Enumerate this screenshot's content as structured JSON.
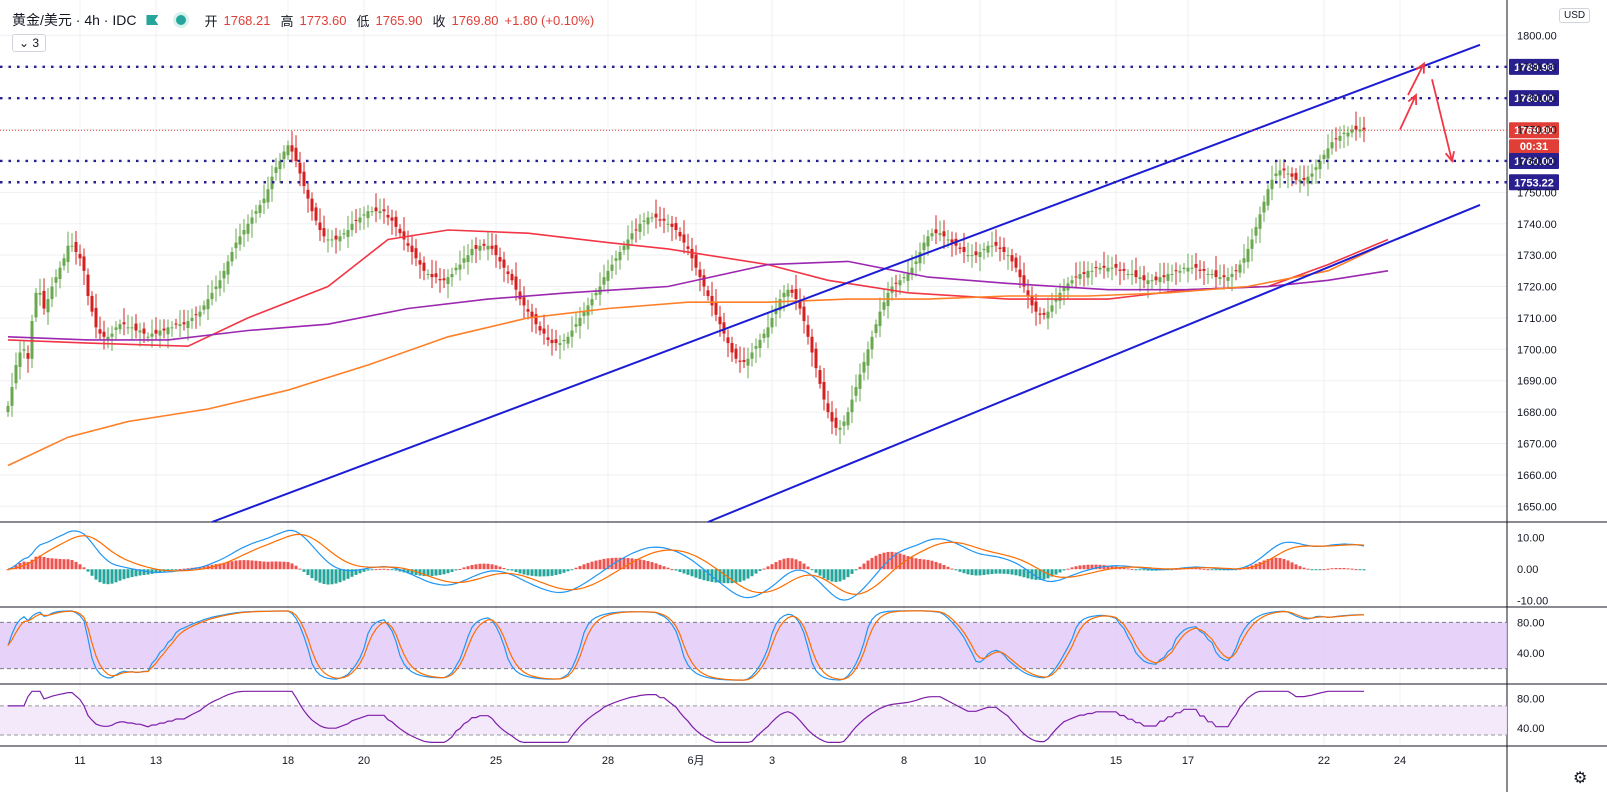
{
  "header": {
    "symbol": "黄金/美元 · 4h · IDC",
    "open_label": "开",
    "open": "1768.21",
    "high_label": "高",
    "high": "1773.60",
    "low_label": "低",
    "low": "1765.90",
    "close_label": "收",
    "close": "1769.80",
    "change": "+1.80 (+0.10%)",
    "collapse_count": "3",
    "currency": "USD"
  },
  "chart_data": {
    "type": "candlestick",
    "price_axis": {
      "ylim": [
        1645,
        1810
      ],
      "ticks": [
        "1800.00",
        "1790.00",
        "1780.00",
        "1770.00",
        "1760.00",
        "1750.00",
        "1740.00",
        "1730.00",
        "1720.00",
        "1710.00",
        "1700.00",
        "1690.00",
        "1680.00",
        "1670.00",
        "1660.00",
        "1650.00"
      ]
    },
    "time_axis": {
      "ticks": [
        {
          "bar": 18,
          "label": "11"
        },
        {
          "bar": 37,
          "label": "13"
        },
        {
          "bar": 70,
          "label": "18"
        },
        {
          "bar": 89,
          "label": "20"
        },
        {
          "bar": 122,
          "label": "25"
        },
        {
          "bar": 150,
          "label": "28"
        },
        {
          "bar": 172,
          "label": "6月"
        },
        {
          "bar": 191,
          "label": "3"
        },
        {
          "bar": 224,
          "label": "8"
        },
        {
          "bar": 243,
          "label": "10"
        },
        {
          "bar": 277,
          "label": "15"
        },
        {
          "bar": 295,
          "label": "17"
        },
        {
          "bar": 329,
          "label": "22"
        },
        {
          "bar": 348,
          "label": "24"
        }
      ]
    },
    "closes": [
      1682,
      1688,
      1695,
      1699,
      1700,
      1697,
      1709,
      1718,
      1718,
      1713,
      1716,
      1720,
      1723,
      1726,
      1729,
      1733,
      1733,
      1731,
      1729,
      1725,
      1717,
      1712,
      1707,
      1705,
      1704,
      1704,
      1705,
      1707,
      1708,
      1708,
      1707,
      1707,
      1706,
      1706,
      1705,
      1704,
      1705,
      1705,
      1706,
      1706,
      1707,
      1707,
      1708,
      1708,
      1708,
      1709,
      1710,
      1711,
      1712,
      1714,
      1716,
      1718,
      1720,
      1722,
      1725,
      1728,
      1731,
      1734,
      1736,
      1738,
      1740,
      1742,
      1744,
      1746,
      1748,
      1751,
      1755,
      1758,
      1760,
      1763,
      1765,
      1763,
      1760,
      1756,
      1752,
      1748,
      1744,
      1741,
      1738,
      1736,
      1735,
      1735,
      1735,
      1736,
      1737,
      1738,
      1740,
      1741,
      1742,
      1743,
      1744,
      1744,
      1744,
      1744,
      1744,
      1742,
      1741,
      1739,
      1737,
      1735,
      1733,
      1731,
      1729,
      1727,
      1725,
      1724,
      1723,
      1723,
      1722,
      1722,
      1723,
      1724,
      1726,
      1727,
      1729,
      1730,
      1732,
      1732,
      1733,
      1733,
      1733,
      1732,
      1730,
      1728,
      1726,
      1724,
      1722,
      1719,
      1716,
      1714,
      1712,
      1710,
      1708,
      1706,
      1705,
      1703,
      1702,
      1702,
      1702,
      1703,
      1704,
      1706,
      1708,
      1710,
      1712,
      1714,
      1716,
      1718,
      1720,
      1723,
      1725,
      1727,
      1729,
      1731,
      1733,
      1735,
      1737,
      1738,
      1740,
      1741,
      1742,
      1742,
      1742,
      1741,
      1741,
      1740,
      1739,
      1738,
      1736,
      1734,
      1732,
      1729,
      1726,
      1723,
      1720,
      1717,
      1714,
      1711,
      1708,
      1705,
      1702,
      1699,
      1697,
      1696,
      1696,
      1697,
      1699,
      1701,
      1703,
      1705,
      1707,
      1710,
      1713,
      1716,
      1718,
      1719,
      1718,
      1716,
      1713,
      1709,
      1704,
      1699,
      1694,
      1689,
      1684,
      1680,
      1677,
      1675,
      1675,
      1677,
      1680,
      1684,
      1688,
      1692,
      1696,
      1700,
      1704,
      1708,
      1712,
      1715,
      1718,
      1720,
      1721,
      1722,
      1723,
      1724,
      1726,
      1728,
      1731,
      1734,
      1736,
      1737,
      1737,
      1737,
      1736,
      1735,
      1734,
      1733,
      1732,
      1731,
      1730,
      1730,
      1730,
      1731,
      1732,
      1733,
      1733,
      1733,
      1732,
      1731,
      1730,
      1728,
      1726,
      1723,
      1720,
      1717,
      1714,
      1712,
      1711,
      1711,
      1712,
      1714,
      1716,
      1718,
      1720,
      1721,
      1722,
      1723,
      1724,
      1724,
      1725,
      1725,
      1726,
      1726,
      1726,
      1726,
      1726,
      1726,
      1725,
      1725,
      1724,
      1724,
      1723,
      1723,
      1722,
      1722,
      1722,
      1722,
      1723,
      1723,
      1724,
      1724,
      1725,
      1725,
      1726,
      1726,
      1726,
      1726,
      1725,
      1725,
      1724,
      1724,
      1723,
      1723,
      1723,
      1723,
      1724,
      1725,
      1727,
      1729,
      1732,
      1735,
      1739,
      1743,
      1747,
      1751,
      1754,
      1756,
      1757,
      1757,
      1756,
      1755,
      1754,
      1754,
      1754,
      1755,
      1756,
      1758,
      1760,
      1762,
      1764,
      1766,
      1767,
      1768,
      1769,
      1769,
      1770,
      1770,
      1770,
      1770
    ],
    "moving_averages": [
      {
        "color": "#f23645",
        "points": [
          [
            0,
            1703
          ],
          [
            20,
            1702
          ],
          [
            45,
            1701
          ],
          [
            60,
            1710
          ],
          [
            80,
            1720
          ],
          [
            95,
            1735
          ],
          [
            110,
            1738
          ],
          [
            130,
            1737
          ],
          [
            150,
            1734
          ],
          [
            165,
            1732
          ],
          [
            190,
            1727
          ],
          [
            205,
            1722
          ],
          [
            225,
            1718
          ],
          [
            250,
            1716
          ],
          [
            275,
            1716
          ],
          [
            295,
            1719
          ],
          [
            315,
            1720
          ],
          [
            330,
            1727
          ],
          [
            345,
            1735
          ]
        ]
      },
      {
        "color": "#9c27b0",
        "points": [
          [
            0,
            1704
          ],
          [
            20,
            1703
          ],
          [
            40,
            1703
          ],
          [
            60,
            1706
          ],
          [
            80,
            1708
          ],
          [
            100,
            1713
          ],
          [
            120,
            1716
          ],
          [
            140,
            1718
          ],
          [
            165,
            1720
          ],
          [
            190,
            1727
          ],
          [
            210,
            1728
          ],
          [
            230,
            1723
          ],
          [
            250,
            1721
          ],
          [
            275,
            1719
          ],
          [
            295,
            1719
          ],
          [
            315,
            1720
          ],
          [
            330,
            1722
          ],
          [
            345,
            1725
          ]
        ]
      },
      {
        "color": "#ff7f27",
        "points": [
          [
            0,
            1663
          ],
          [
            15,
            1672
          ],
          [
            30,
            1677
          ],
          [
            50,
            1681
          ],
          [
            70,
            1687
          ],
          [
            90,
            1695
          ],
          [
            110,
            1704
          ],
          [
            130,
            1710
          ],
          [
            150,
            1713
          ],
          [
            170,
            1715
          ],
          [
            190,
            1715
          ],
          [
            210,
            1716
          ],
          [
            230,
            1716
          ],
          [
            250,
            1717
          ],
          [
            270,
            1717
          ],
          [
            290,
            1718
          ],
          [
            310,
            1720
          ],
          [
            330,
            1725
          ],
          [
            345,
            1734
          ]
        ]
      }
    ],
    "trend_lines": [
      {
        "color": "#1c1cd6",
        "from": [
          51,
          1645
        ],
        "to": [
          368,
          1797
        ]
      },
      {
        "color": "#1c1cd6",
        "from": [
          175,
          1645
        ],
        "to": [
          368,
          1746
        ]
      }
    ],
    "horizontal_levels": [
      {
        "value": 1789.98,
        "label": "1789.98",
        "style": "dotted",
        "color": "#2a1f8f"
      },
      {
        "value": 1780.0,
        "label": "1780.00",
        "style": "dotted",
        "color": "#2a1f8f"
      },
      {
        "value": 1769.8,
        "label": "1769.80",
        "style": "last",
        "color": "#e03e36"
      },
      {
        "value": 1760.0,
        "label": "1760.00",
        "style": "dotted",
        "color": "#2a1f8f"
      },
      {
        "value": 1753.22,
        "label": "1753.22",
        "style": "dotted",
        "color": "#2a1f8f"
      }
    ],
    "countdown": "00:31",
    "arrows": [
      {
        "from": [
          348,
          1770
        ],
        "to": [
          352,
          1781
        ]
      },
      {
        "from": [
          350,
          1781
        ],
        "to": [
          354,
          1791
        ]
      },
      {
        "from": [
          356,
          1786
        ],
        "to": [
          361,
          1760
        ]
      }
    ],
    "macd": {
      "ticks": [
        "10.00",
        "0.00",
        "-10.00"
      ],
      "ylim": [
        -12,
        15
      ],
      "zero": 0
    },
    "stoch": {
      "ticks": [
        "80.00",
        "40.00"
      ],
      "ylim": [
        0,
        100
      ],
      "band": [
        20,
        80
      ]
    },
    "rsi": {
      "ticks": [
        "80.00",
        "40.00"
      ],
      "ylim": [
        15,
        100
      ],
      "band": [
        30,
        70
      ]
    }
  }
}
